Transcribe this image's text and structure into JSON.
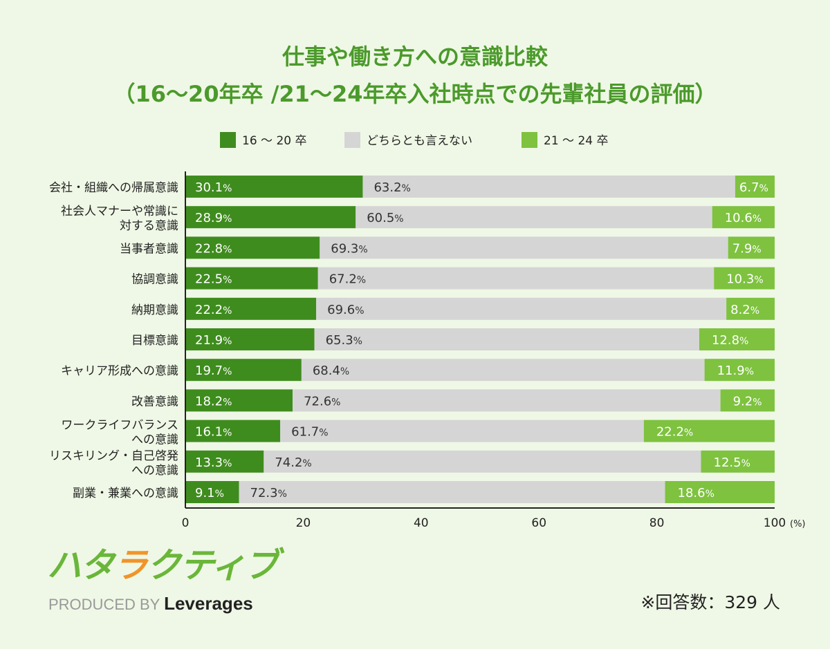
{
  "title": {
    "line1": "仕事や働き方への意識比較",
    "line2": "（16～20年卒 /21～24年卒入社時点での先輩社員の評価）"
  },
  "chart_data": {
    "type": "bar",
    "orientation": "horizontal",
    "stacked": true,
    "categories": [
      "会社・組織への帰属意識",
      "社会人マナーや常識に\n対する意識",
      "当事者意識",
      "協調意識",
      "納期意識",
      "目標意識",
      "キャリア形成への意識",
      "改善意識",
      "ワークライフバランス\nへの意識",
      "リスキリング・自己啓発\nへの意識",
      "副業・兼業への意識"
    ],
    "series": [
      {
        "name": "16 ～ 20 卒",
        "color": "#3f8c1e",
        "values": [
          30.1,
          28.9,
          22.8,
          22.5,
          22.2,
          21.9,
          19.7,
          18.2,
          16.1,
          13.3,
          9.1
        ]
      },
      {
        "name": "どちらとも言えない",
        "color": "#d5d5d5",
        "values": [
          63.2,
          60.5,
          69.3,
          67.2,
          69.6,
          65.3,
          68.4,
          72.6,
          61.7,
          74.2,
          72.3
        ]
      },
      {
        "name": "21 ～ 24 卒",
        "color": "#7ec23f",
        "values": [
          6.7,
          10.6,
          7.9,
          10.3,
          8.2,
          12.8,
          11.9,
          9.2,
          22.2,
          12.5,
          18.6
        ]
      }
    ],
    "xlim": [
      0,
      100
    ],
    "xticks": [
      "0",
      "20",
      "40",
      "60",
      "80",
      "100"
    ],
    "xunit": "(%)",
    "value_suffix": "%",
    "legend_position": "top",
    "grid": false
  },
  "logo": {
    "brand": "ハタラクティブ",
    "produced_by": "PRODUCED BY",
    "company": "Leverages"
  },
  "note": "※回答数：329 人"
}
